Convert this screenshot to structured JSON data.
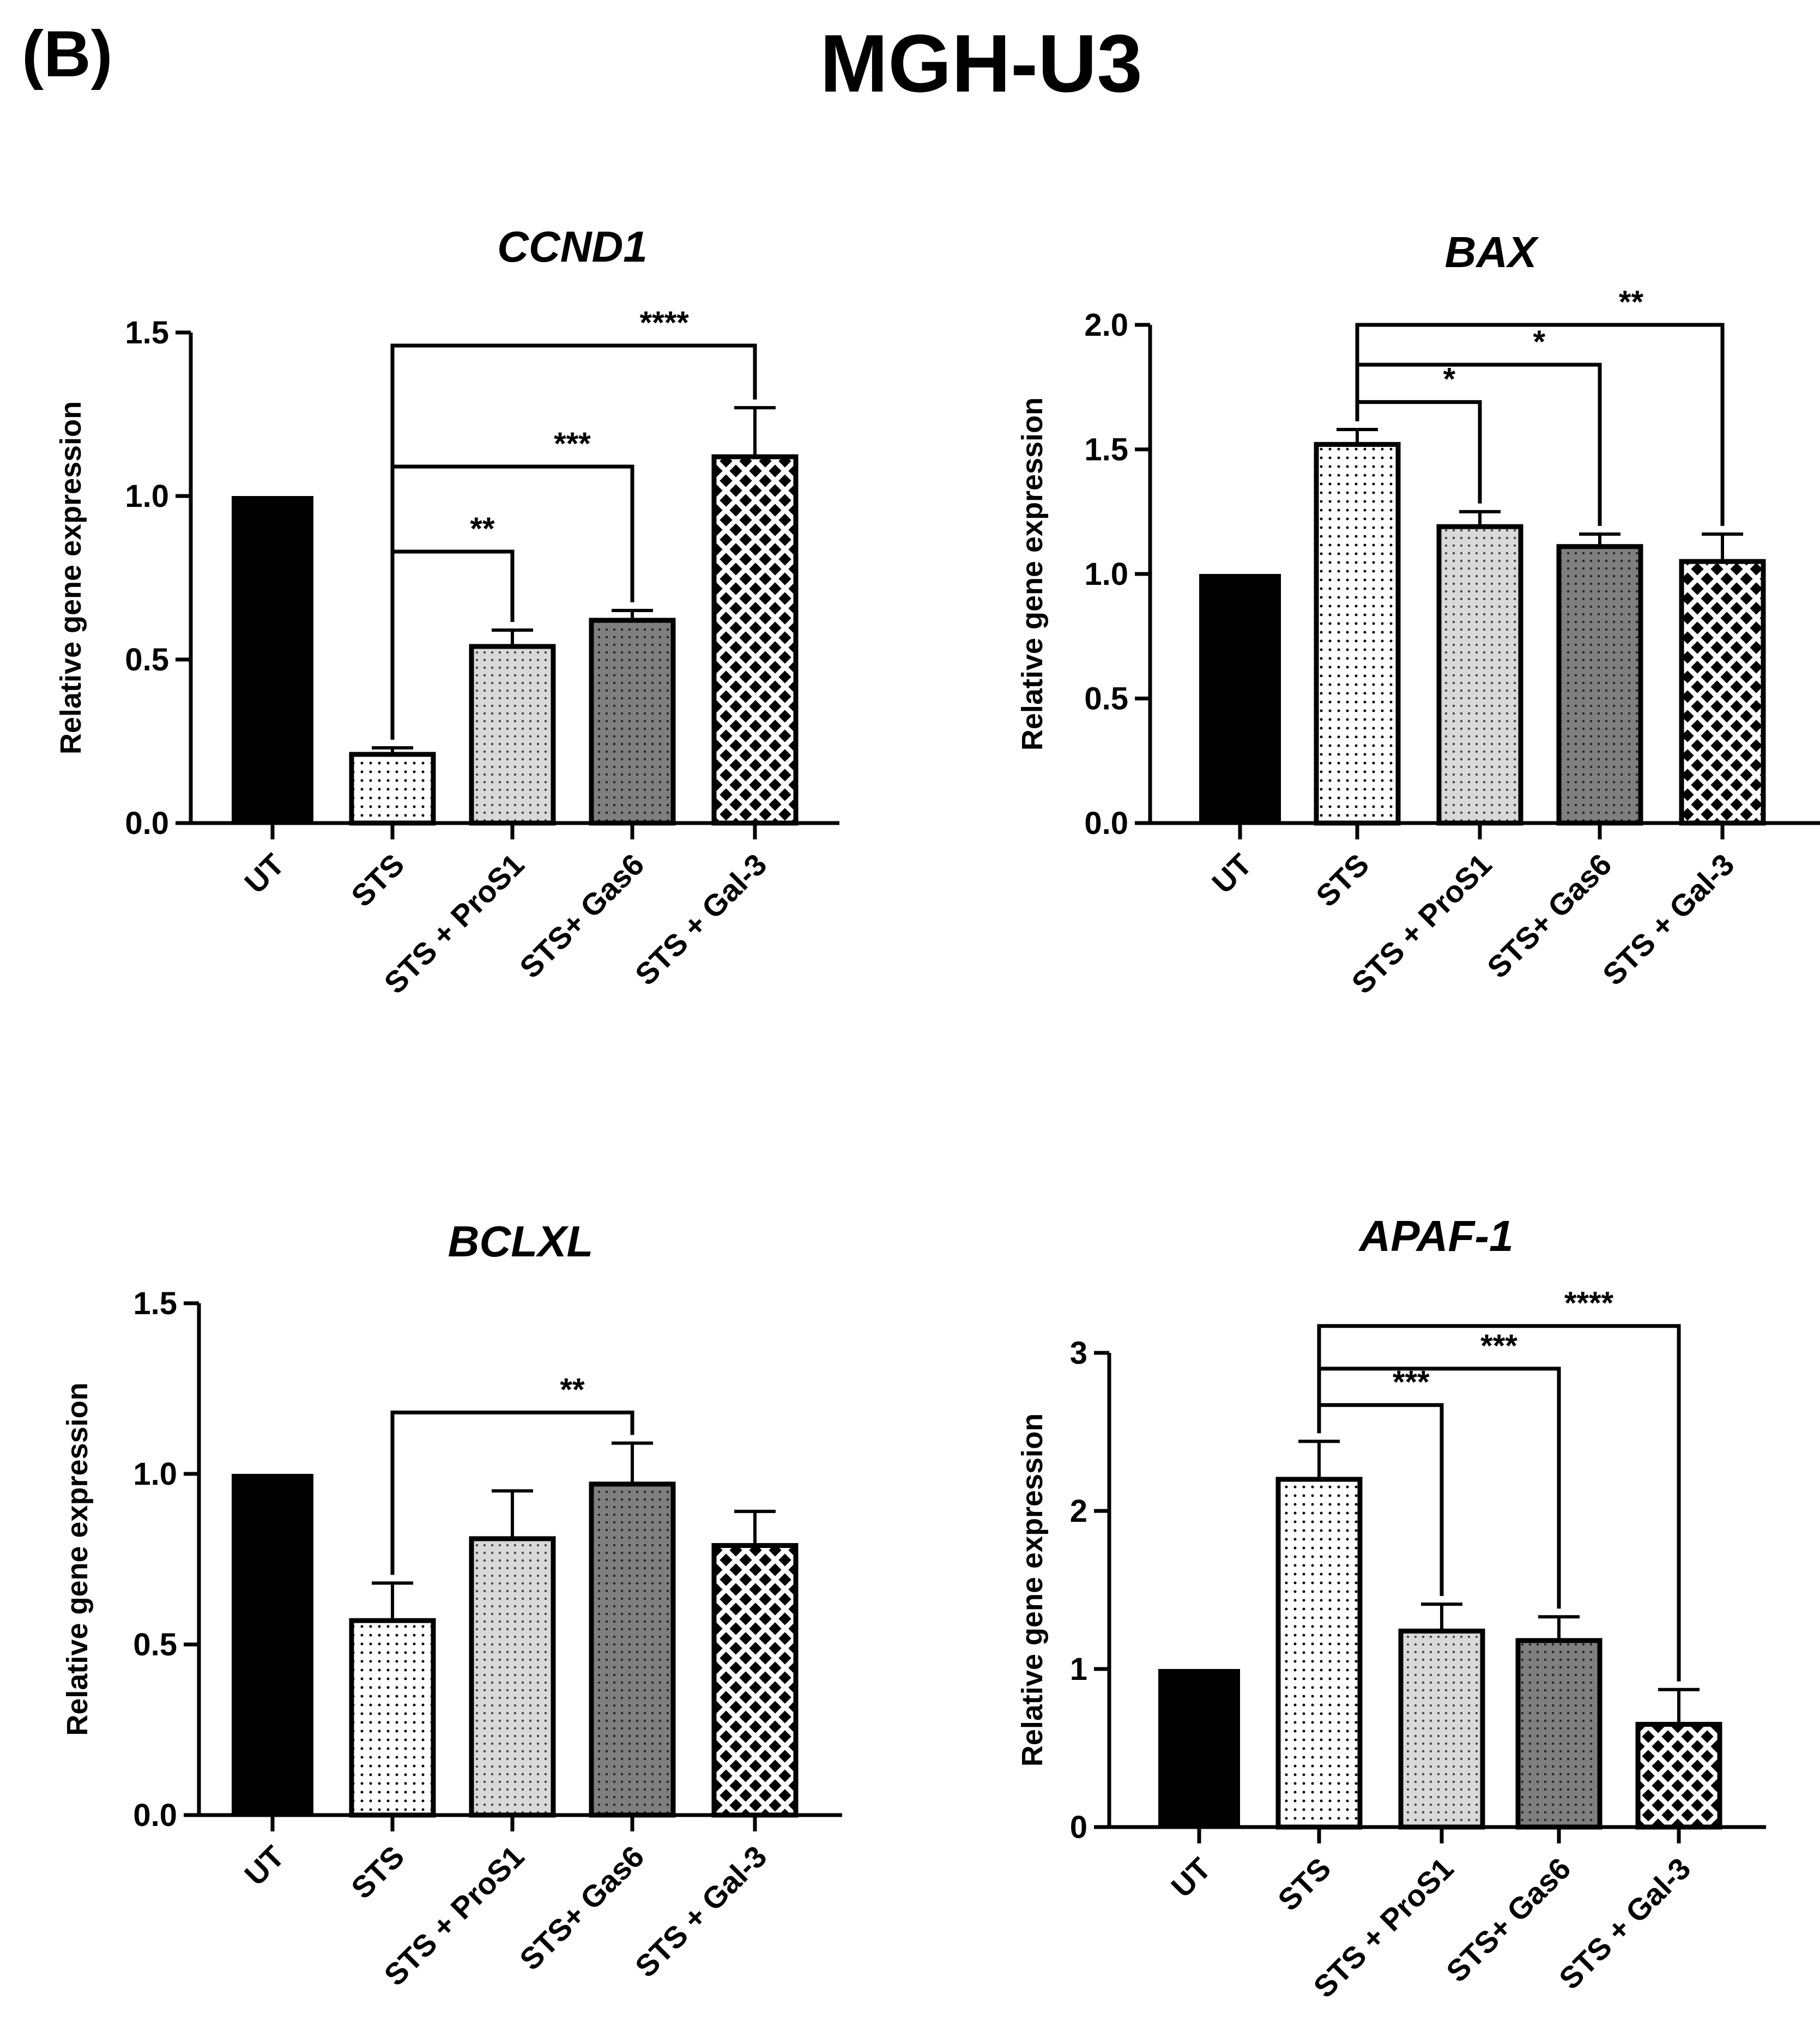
{
  "figure": {
    "panel_label": "(B)",
    "title": "MGH-U3"
  },
  "colors": {
    "bar_black": "#000000",
    "sts_fill": "#ffffff",
    "pros1_fill": "#d9d9d9",
    "gas6_fill": "#808080",
    "gal3_fill": "#000000"
  },
  "chart_data": [
    {
      "type": "bar",
      "title": "CCND1",
      "ylabel": "Relative gene expression",
      "ylim": [
        0,
        1.5
      ],
      "yticks": [
        "0.0",
        "0.5",
        "1.0",
        "1.5"
      ],
      "categories": [
        "UT",
        "STS",
        "STS + ProS1",
        "STS+ Gas6",
        "STS + Gal-3"
      ],
      "values": [
        1.0,
        0.21,
        0.54,
        0.62,
        1.12
      ],
      "errors": [
        0.0,
        0.02,
        0.05,
        0.03,
        0.15
      ],
      "significance": [
        {
          "from": "STS",
          "to": "STS + ProS1",
          "label": "**",
          "level": 0.83
        },
        {
          "from": "STS",
          "to": "STS+ Gas6",
          "label": "***",
          "level": 1.09
        },
        {
          "from": "STS",
          "to": "STS + Gal-3",
          "label": "****",
          "level": 1.46
        }
      ]
    },
    {
      "type": "bar",
      "title": "BAX",
      "ylabel": "Relative gene expression",
      "ylim": [
        0,
        2.0
      ],
      "yticks": [
        "0.0",
        "0.5",
        "1.0",
        "1.5",
        "2.0"
      ],
      "categories": [
        "UT",
        "STS",
        "STS + ProS1",
        "STS+ Gas6",
        "STS + Gal-3"
      ],
      "values": [
        1.0,
        1.52,
        1.19,
        1.11,
        1.05
      ],
      "errors": [
        0.0,
        0.06,
        0.06,
        0.05,
        0.11
      ],
      "significance": [
        {
          "from": "STS",
          "to": "STS + ProS1",
          "label": "*",
          "level": 1.69
        },
        {
          "from": "STS",
          "to": "STS+ Gas6",
          "label": "*",
          "level": 1.84
        },
        {
          "from": "STS",
          "to": "STS + Gal-3",
          "label": "**",
          "level": 2.0
        }
      ]
    },
    {
      "type": "bar",
      "title": "BCLXL",
      "ylabel": "Relative gene expression",
      "ylim": [
        0,
        1.5
      ],
      "yticks": [
        "0.0",
        "0.5",
        "1.0",
        "1.5"
      ],
      "categories": [
        "UT",
        "STS",
        "STS + ProS1",
        "STS+ Gas6",
        "STS + Gal-3"
      ],
      "values": [
        1.0,
        0.57,
        0.81,
        0.97,
        0.79
      ],
      "errors": [
        0.0,
        0.11,
        0.14,
        0.12,
        0.1
      ],
      "significance": [
        {
          "from": "STS",
          "to": "STS+ Gas6",
          "label": "**",
          "level": 1.18
        }
      ]
    },
    {
      "type": "bar",
      "title": "APAF-1",
      "ylabel": "Relative gene expression",
      "ylim": [
        0,
        3
      ],
      "yticks": [
        "0",
        "1",
        "2",
        "3"
      ],
      "categories": [
        "UT",
        "STS",
        "STS + ProS1",
        "STS+ Gas6",
        "STS + Gal-3"
      ],
      "values": [
        1.0,
        2.2,
        1.24,
        1.18,
        0.65
      ],
      "errors": [
        0.0,
        0.24,
        0.17,
        0.15,
        0.22
      ],
      "significance": [
        {
          "from": "STS",
          "to": "STS + ProS1",
          "label": "***",
          "level": 2.67
        },
        {
          "from": "STS",
          "to": "STS+ Gas6",
          "label": "***",
          "level": 2.9
        },
        {
          "from": "STS",
          "to": "STS + Gal-3",
          "label": "****",
          "level": 3.17
        }
      ]
    }
  ]
}
